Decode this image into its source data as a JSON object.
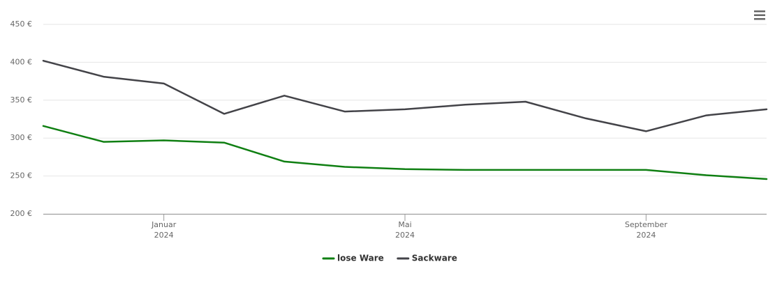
{
  "chart_data": {
    "type": "line",
    "x": [
      "2023-11",
      "2023-12",
      "2024-01",
      "2024-02",
      "2024-03",
      "2024-04",
      "2024-05",
      "2024-06",
      "2024-07",
      "2024-08",
      "2024-09",
      "2024-10",
      "2024-11"
    ],
    "series": [
      {
        "name": "lose Ware",
        "color": "#0f7f12",
        "values": [
          316,
          295,
          297,
          294,
          269,
          262,
          259,
          258,
          258,
          258,
          258,
          251,
          246
        ]
      },
      {
        "name": "Sackware",
        "color": "#434348",
        "values": [
          402,
          381,
          372,
          332,
          356,
          335,
          338,
          344,
          348,
          326,
          309,
          330,
          338
        ]
      }
    ],
    "xlim": [
      "2023-11",
      "2024-11"
    ],
    "xticks": [
      {
        "value": "2024-01",
        "label": "Januar\n2024"
      },
      {
        "value": "2024-05",
        "label": "Mai\n2024"
      },
      {
        "value": "2024-09",
        "label": "September\n2024"
      }
    ],
    "ylim": [
      200,
      450
    ],
    "yticks": [
      {
        "value": 200,
        "label": "200 €"
      },
      {
        "value": 250,
        "label": "250 €"
      },
      {
        "value": 300,
        "label": "300 €"
      },
      {
        "value": 350,
        "label": "350 €"
      },
      {
        "value": 400,
        "label": "400 €"
      },
      {
        "value": 450,
        "label": "450 €"
      }
    ],
    "grid": true,
    "legend": "bottom"
  }
}
